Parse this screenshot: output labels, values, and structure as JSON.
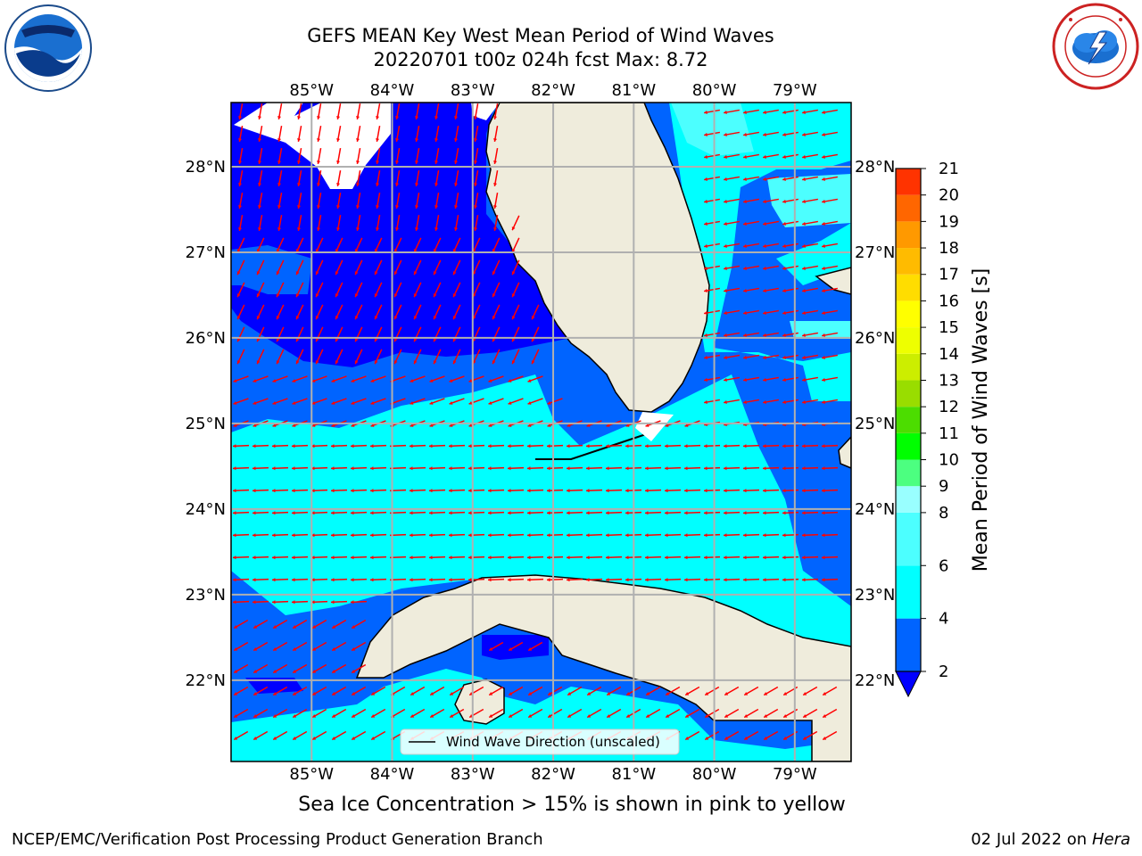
{
  "header": {
    "title_line1": "GEFS MEAN Key West Mean Period of Wind Waves",
    "title_line2": "20220701 t00z 024h fcst   Max: 8.72"
  },
  "logos": {
    "left": {
      "name": "NOAA",
      "icon": "noaa-logo"
    },
    "right": {
      "name": "National Weather Service",
      "icon": "nws-logo"
    }
  },
  "map": {
    "lon_labels": [
      "85°W",
      "84°W",
      "83°W",
      "82°W",
      "81°W",
      "80°W",
      "79°W"
    ],
    "lon_values": [
      -85,
      -84,
      -83,
      -82,
      -81,
      -80,
      -79
    ],
    "lat_labels": [
      "28°N",
      "27°N",
      "26°N",
      "25°N",
      "24°N",
      "23°N",
      "22°N"
    ],
    "lat_values": [
      28,
      27,
      26,
      25,
      24,
      23,
      22
    ],
    "lon_range": [
      -86,
      -78.3
    ],
    "lat_range": [
      21.05,
      28.75
    ],
    "grid": true,
    "legend_label": "Wind Wave Direction (unscaled)",
    "land_color": "#efecdc",
    "arrow_color": "#ff0000"
  },
  "colorbar": {
    "label": "Mean Period of Wind Waves [s]",
    "ticks": [
      "2",
      "4",
      "6",
      "8",
      "9",
      "10",
      "11",
      "12",
      "13",
      "14",
      "15",
      "16",
      "17",
      "18",
      "19",
      "20",
      "21"
    ],
    "tick_values": [
      2,
      4,
      6,
      8,
      9,
      10,
      11,
      12,
      13,
      14,
      15,
      16,
      17,
      18,
      19,
      20,
      21
    ],
    "colors": [
      "#0064ff",
      "#00ffff",
      "#4cffff",
      "#99ffff",
      "#4cff80",
      "#00ff00",
      "#4cdd00",
      "#99dd00",
      "#ccee00",
      "#eeff00",
      "#ffff00",
      "#ffdd00",
      "#ffbb00",
      "#ff9900",
      "#ff6600",
      "#ff3300",
      "#ff0000"
    ],
    "extend_color": "#0000ff"
  },
  "note": "Sea Ice Concentration > 15% is shown in pink to yellow",
  "footer": {
    "left": "NCEP/EMC/Verification Post Processing Product Generation Branch",
    "right_prefix": "02 Jul 2022 on ",
    "right_host": "Hera"
  }
}
